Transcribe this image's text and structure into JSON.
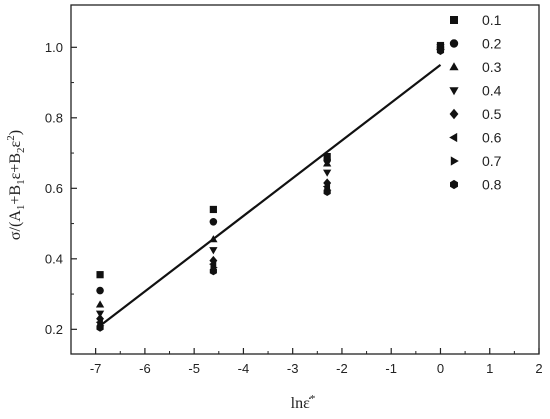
{
  "chart_data": {
    "type": "scatter",
    "xlabel": "lnε̇*",
    "ylabel": "σ/(A1+B1ε+B2ε2)",
    "xlim": [
      -7.5,
      2
    ],
    "ylim": [
      0.13,
      1.12
    ],
    "xticks": [
      -7,
      -6,
      -5,
      -4,
      -3,
      -2,
      -1,
      0,
      1,
      2
    ],
    "yticks": [
      0.2,
      0.4,
      0.6,
      0.8,
      1.0
    ],
    "xtick_labels": [
      "-7",
      "-6",
      "-5",
      "-4",
      "-3",
      "-2",
      "-1",
      "0",
      "1",
      "2"
    ],
    "ytick_labels": [
      "0.2",
      "0.4",
      "0.6",
      "0.8",
      "1.0"
    ],
    "legend_position": "top-right",
    "marker_color": "#111111",
    "series": [
      {
        "name": "0.1",
        "marker": "square",
        "x": [
          -6.91,
          -4.61,
          -2.3,
          0
        ],
        "y": [
          0.355,
          0.54,
          0.69,
          1.005
        ]
      },
      {
        "name": "0.2",
        "marker": "circle",
        "x": [
          -6.91,
          -4.61,
          -2.3,
          0
        ],
        "y": [
          0.31,
          0.505,
          0.68,
          1.0
        ]
      },
      {
        "name": "0.3",
        "marker": "triangle-up",
        "x": [
          -6.91,
          -4.61,
          -2.3,
          0
        ],
        "y": [
          0.27,
          0.455,
          0.67,
          1.0
        ]
      },
      {
        "name": "0.4",
        "marker": "triangle-down",
        "x": [
          -6.91,
          -4.61,
          -2.3,
          0
        ],
        "y": [
          0.245,
          0.425,
          0.645,
          1.0
        ]
      },
      {
        "name": "0.5",
        "marker": "diamond",
        "x": [
          -6.91,
          -4.61,
          -2.3,
          0
        ],
        "y": [
          0.23,
          0.395,
          0.615,
          0.995
        ]
      },
      {
        "name": "0.6",
        "marker": "triangle-left",
        "x": [
          -6.91,
          -4.61,
          -2.3,
          0
        ],
        "y": [
          0.22,
          0.385,
          0.605,
          0.995
        ]
      },
      {
        "name": "0.7",
        "marker": "triangle-right",
        "x": [
          -6.91,
          -4.61,
          -2.3,
          0
        ],
        "y": [
          0.21,
          0.375,
          0.595,
          0.995
        ]
      },
      {
        "name": "0.8",
        "marker": "hexagon",
        "x": [
          -6.91,
          -4.61,
          -2.3,
          0
        ],
        "y": [
          0.205,
          0.365,
          0.59,
          0.99
        ]
      }
    ],
    "fit_line": {
      "x": [
        -6.91,
        0
      ],
      "y": [
        0.21,
        0.95
      ]
    }
  }
}
